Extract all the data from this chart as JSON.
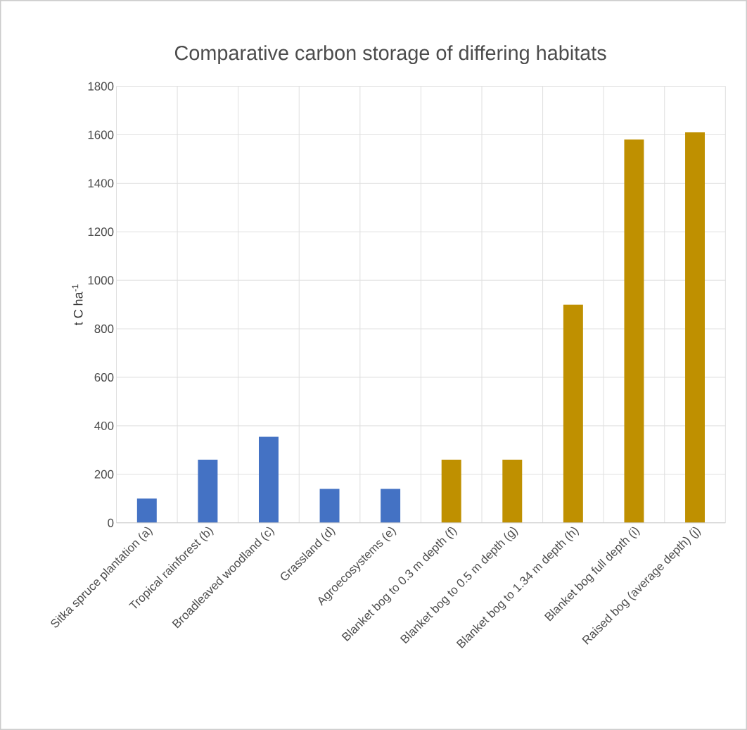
{
  "chart_data": {
    "type": "bar",
    "title": "Comparative carbon storage of differing habitats",
    "ylabel": "t C ha$^{-1}$",
    "categories": [
      "Sitka spruce plantation (a)",
      "Tropical rainforest (b)",
      "Broadleaved woodland (c)",
      "Grassland (d)",
      "Agroecosystems (e)",
      "Blanket bog to 0.3 m depth (f)",
      "Blanket bog to 0.5 m depth (g)",
      "Blanket bog to 1.34 m depth (h)",
      "Blanket bog full depth (i)",
      "Raised bog (average depth) (j)"
    ],
    "values": [
      100,
      260,
      355,
      140,
      140,
      260,
      260,
      900,
      1580,
      1610
    ],
    "colors": [
      "#4472c4",
      "#4472c4",
      "#4472c4",
      "#4472c4",
      "#4472c4",
      "#bf9000",
      "#bf9000",
      "#bf9000",
      "#bf9000",
      "#bf9000"
    ],
    "ylim": [
      0,
      1800
    ],
    "yticks": [
      0,
      200,
      400,
      600,
      800,
      1000,
      1200,
      1400,
      1600,
      1800
    ],
    "grid": true
  }
}
